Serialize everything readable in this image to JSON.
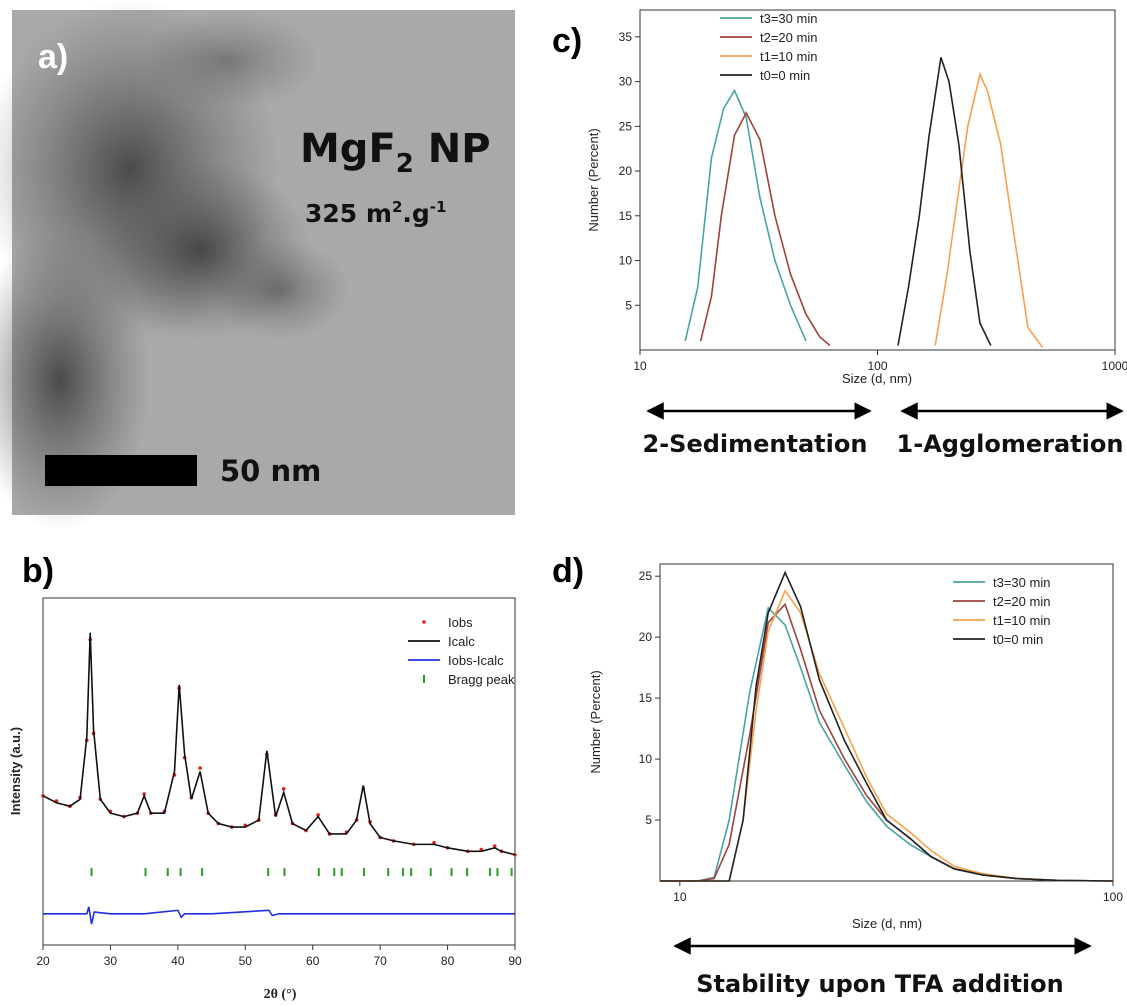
{
  "image_panel": {
    "panel_label": "a)",
    "title": "MgF",
    "title_sub": "2",
    "title_rest": " NP",
    "surface": "325 m",
    "surface_sup": "2",
    "surface_mid": ".g",
    "surface_sup2": "-1",
    "scale_bar": "50 nm"
  },
  "chart_data": [
    {
      "type": "line",
      "panel_label": "b)",
      "xlabel": "2θ (°)",
      "ylabel": "Intensity (a.u.)",
      "xlim": [
        20,
        90
      ],
      "xticks": [
        20,
        30,
        40,
        50,
        60,
        70,
        80,
        90
      ],
      "ylim": [
        0,
        100
      ],
      "legend": "upper right",
      "series": [
        {
          "name": "Iobs",
          "color": "#e02020",
          "style": "points",
          "x": [
            20,
            22,
            24,
            25.5,
            26.5,
            27,
            27.5,
            28.5,
            30,
            32,
            34,
            35,
            36,
            38,
            39.5,
            40.2,
            41,
            42,
            43.3,
            44.5,
            46,
            48,
            50,
            52,
            53.2,
            54.5,
            55.7,
            57,
            59,
            60.8,
            62.5,
            65,
            66.5,
            67.5,
            68.5,
            70,
            72,
            75,
            78,
            80,
            83,
            85,
            87,
            88,
            90
          ],
          "values": [
            43,
            41.5,
            40,
            42.5,
            59,
            88,
            61,
            42,
            38.5,
            37,
            38,
            43.5,
            38,
            38.5,
            49,
            74,
            54,
            42.5,
            51,
            38,
            35,
            34,
            34.5,
            36,
            55,
            37.5,
            45,
            35,
            33,
            37.5,
            32,
            32.5,
            36,
            45,
            35.5,
            31,
            30,
            29,
            29.5,
            28,
            27,
            27.5,
            28.5,
            27,
            26
          ]
        },
        {
          "name": "Icalc",
          "color": "#111111",
          "style": "line",
          "x": [
            20,
            22,
            24,
            25.5,
            26.5,
            27,
            27.5,
            28.5,
            30,
            32,
            34,
            35,
            36,
            38,
            39.5,
            40.2,
            41,
            42,
            43.3,
            44.5,
            46,
            48,
            50,
            52,
            53.2,
            54.5,
            55.7,
            57,
            59,
            60.8,
            62.5,
            65,
            66.5,
            67.5,
            68.5,
            70,
            72,
            75,
            78,
            80,
            83,
            85,
            87,
            88,
            90
          ],
          "values": [
            43,
            41,
            40,
            42,
            60,
            90,
            62,
            42,
            38,
            37,
            38,
            43,
            38,
            38,
            50,
            75,
            55,
            42,
            50,
            38,
            35,
            34,
            34,
            36,
            56,
            37,
            44,
            35,
            33,
            37,
            32,
            32,
            36,
            46,
            35,
            31,
            30,
            29,
            29,
            28,
            27,
            27,
            28,
            27,
            26
          ]
        },
        {
          "name": "Iobs-Icalc",
          "color": "#2030e0",
          "style": "line",
          "x": [
            20,
            26.5,
            26.8,
            27.2,
            27.6,
            30,
            35,
            40,
            40.5,
            41,
            45,
            53.5,
            54,
            55,
            60,
            70,
            80,
            90
          ],
          "values": [
            9,
            9,
            11,
            6,
            9.5,
            9,
            9,
            10,
            8,
            9,
            9,
            10,
            8.5,
            9,
            9,
            9,
            9,
            9
          ]
        },
        {
          "name": "Bragg peak",
          "color": "#20a020",
          "style": "ticks",
          "x": [
            27.2,
            35.2,
            38.5,
            40.4,
            43.6,
            53.4,
            55.8,
            60.9,
            63.2,
            64.3,
            67.6,
            71.2,
            73.4,
            74.6,
            77.5,
            80.6,
            82.9,
            86.3,
            87.4,
            89.5
          ],
          "values": [
            21,
            21,
            21,
            21,
            21,
            21,
            21,
            21,
            21,
            21,
            21,
            21,
            21,
            21,
            21,
            21,
            21,
            21,
            21,
            21
          ]
        }
      ]
    },
    {
      "type": "line",
      "panel_label": "c)",
      "xlabel": "Size (d, nm)",
      "ylabel": "Number (Percent)",
      "xscale": "log",
      "xlim": [
        10,
        1000
      ],
      "xticks": [
        10,
        100,
        1000
      ],
      "ylim": [
        0,
        38
      ],
      "yticks": [
        5,
        10,
        15,
        20,
        25,
        30,
        35
      ],
      "legend": "upper left",
      "annotations": [
        "2-Sedimentation",
        "1-Agglomeration"
      ],
      "series": [
        {
          "name": "t3=30 min",
          "color": "#4aa3a3",
          "style": "line",
          "x": [
            15.5,
            17.5,
            20,
            22.5,
            25,
            28,
            32,
            37,
            43,
            50
          ],
          "values": [
            1,
            7,
            21.5,
            27,
            29,
            26,
            17,
            10,
            5,
            1
          ]
        },
        {
          "name": "t2=20 min",
          "color": "#a0403f",
          "style": "line",
          "x": [
            18,
            20,
            22,
            25,
            28,
            32,
            37,
            43,
            50,
            57,
            63
          ],
          "values": [
            1,
            6,
            15,
            24,
            26.5,
            23.5,
            15,
            8.5,
            4,
            1.5,
            0.5
          ]
        },
        {
          "name": "t1=10 min",
          "color": "#f9a04b",
          "style": "line",
          "x": [
            175,
            195,
            215,
            240,
            270,
            290,
            330,
            375,
            430,
            495
          ],
          "values": [
            0.5,
            8,
            16,
            25,
            30.8,
            29,
            23,
            13,
            2.5,
            0.3
          ]
        },
        {
          "name": "t0=0 min",
          "color": "#222222",
          "style": "line",
          "x": [
            122,
            135,
            150,
            165,
            185,
            200,
            220,
            245,
            270,
            300
          ],
          "values": [
            0.5,
            7,
            15,
            24,
            32.7,
            30,
            23,
            11,
            3,
            0.5
          ]
        }
      ]
    },
    {
      "type": "line",
      "panel_label": "d)",
      "xlabel": "Size (d, nm)",
      "ylabel": "Number (Percent)",
      "xscale": "log",
      "xlim": [
        9,
        100
      ],
      "xticks": [
        10,
        100
      ],
      "ylim": [
        0,
        26
      ],
      "yticks": [
        5,
        10,
        15,
        20,
        25
      ],
      "legend": "upper right",
      "annotations": [
        "Stability upon TFA addition"
      ],
      "series": [
        {
          "name": "t3=30 min",
          "color": "#4aa3a3",
          "style": "line",
          "x": [
            9,
            11,
            12,
            13,
            14.5,
            16,
            17.5,
            19,
            21,
            24,
            27,
            30,
            34,
            38,
            43,
            50,
            60,
            75,
            100
          ],
          "values": [
            0,
            0,
            0.3,
            5,
            15.5,
            22.4,
            21,
            17.5,
            13,
            9.5,
            6.5,
            4.5,
            3,
            2,
            1,
            0.5,
            0.2,
            0.05,
            0
          ]
        },
        {
          "name": "t2=20 min",
          "color": "#a0403f",
          "style": "line",
          "x": [
            9,
            11,
            12,
            13,
            14.5,
            16,
            17.5,
            19,
            21,
            24,
            27,
            30,
            34,
            38,
            43,
            50,
            60,
            75,
            100
          ],
          "values": [
            0,
            0,
            0.2,
            3,
            12,
            21.2,
            22.7,
            19,
            14,
            10,
            7,
            5,
            3.5,
            2,
            1,
            0.5,
            0.2,
            0.05,
            0
          ]
        },
        {
          "name": "t1=10 min",
          "color": "#f9a04b",
          "style": "line",
          "x": [
            9,
            12,
            13,
            14,
            15,
            16,
            17.5,
            19,
            21,
            24,
            27,
            30,
            34,
            38,
            43,
            50,
            60,
            75,
            100
          ],
          "values": [
            0,
            0,
            0,
            5,
            14,
            20.5,
            23.8,
            22,
            17,
            12.5,
            8.5,
            5.5,
            4,
            2.5,
            1.2,
            0.6,
            0.2,
            0.05,
            0
          ]
        },
        {
          "name": "t0=0 min",
          "color": "#222222",
          "style": "line",
          "x": [
            9,
            12,
            13,
            14,
            15,
            16,
            17.5,
            19,
            21,
            24,
            27,
            30,
            34,
            38,
            43,
            50,
            60,
            75,
            100
          ],
          "values": [
            0,
            0,
            0,
            5,
            16,
            22,
            25.3,
            22.5,
            16.5,
            11.5,
            8,
            5,
            3.5,
            2,
            1,
            0.5,
            0.2,
            0.05,
            0
          ]
        }
      ]
    }
  ]
}
